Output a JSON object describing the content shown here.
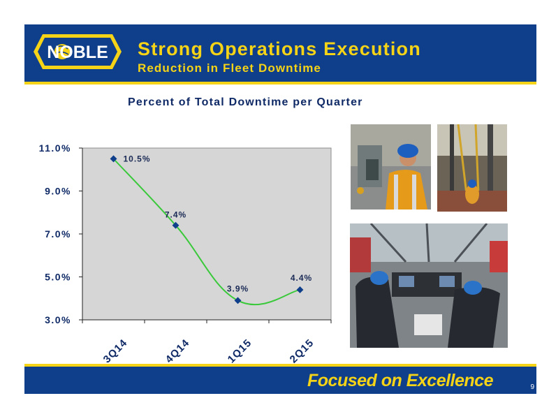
{
  "header": {
    "logo_text": "NOBLE",
    "title": "Strong Operations Execution",
    "subtitle": "Reduction in Fleet Downtime"
  },
  "chart_data": {
    "type": "line",
    "title": "Percent of Total Downtime per Quarter",
    "categories": [
      "3Q14",
      "4Q14",
      "1Q15",
      "2Q15"
    ],
    "series": [
      {
        "values": [
          10.5,
          7.4,
          3.9,
          4.4
        ],
        "labels": [
          "10.5%",
          "7.4%",
          "3.9%",
          "4.4%"
        ]
      }
    ],
    "yticks": [
      "11.0%",
      "9.0%",
      "7.0%",
      "5.0%",
      "3.0%"
    ],
    "ytick_values": [
      11,
      9,
      7,
      5,
      3
    ],
    "ylim": [
      3,
      11
    ],
    "xlabel": "",
    "ylabel": "",
    "grid": false,
    "legend": "none",
    "colors": {
      "line": "#3ac93a",
      "marker": "#0f3e8a",
      "plot_bg": "#d6d6d6",
      "axis_text": "#0f2a66"
    }
  },
  "photos": [
    {
      "name": "worker-at-control-panel-photo"
    },
    {
      "name": "drill-floor-photo"
    },
    {
      "name": "driller-cabin-photo"
    }
  ],
  "footer": {
    "tagline": "Focused on Excellence",
    "page_number": "9"
  },
  "colors": {
    "brand_blue": "#0f3e8a",
    "brand_yellow": "#f5d316"
  }
}
